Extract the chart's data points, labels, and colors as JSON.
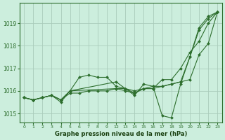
{
  "title": "Graphe pression niveau de la mer (hPa)",
  "bg_color": "#cceedd",
  "grid_color": "#aaccbb",
  "line_color": "#2d6e2d",
  "marker_color": "#2d6e2d",
  "ylim": [
    1014.6,
    1019.9
  ],
  "yticks": [
    1015,
    1016,
    1017,
    1018,
    1019
  ],
  "xlabel_color": "#1a4010",
  "series": [
    {
      "x": [
        0,
        1,
        2,
        3,
        4,
        5,
        6,
        7,
        8,
        9,
        12,
        13,
        14,
        15,
        16,
        17,
        18,
        19,
        20,
        21,
        22,
        23
      ],
      "y": [
        1015.7,
        1015.6,
        1015.7,
        1015.8,
        1015.5,
        1016.0,
        1016.6,
        1016.7,
        1016.6,
        1016.6,
        1016.2,
        1016.1,
        1015.8,
        1016.3,
        1016.2,
        1014.9,
        1014.8,
        1016.3,
        1017.5,
        1018.7,
        1019.2,
        1019.5
      ]
    },
    {
      "x": [
        0,
        1,
        2,
        3,
        4,
        5,
        6,
        7,
        8,
        9,
        12,
        13,
        14,
        15,
        16,
        17,
        18,
        19,
        20,
        21,
        22,
        23
      ],
      "y": [
        1015.7,
        1015.6,
        1015.7,
        1015.8,
        1015.6,
        1015.9,
        1015.9,
        1016.0,
        1016.0,
        1016.0,
        1016.1,
        1016.0,
        1015.9,
        1016.1,
        1016.2,
        1016.2,
        1016.3,
        1016.4,
        1016.5,
        1017.6,
        1018.1,
        1019.5
      ]
    },
    {
      "x": [
        0,
        1,
        2,
        3,
        4,
        5,
        12,
        13,
        14,
        15,
        16,
        17,
        18,
        19,
        20,
        21,
        22,
        23
      ],
      "y": [
        1015.7,
        1015.6,
        1015.7,
        1015.8,
        1015.6,
        1016.0,
        1016.4,
        1016.1,
        1015.9,
        1016.1,
        1016.1,
        1016.2,
        1016.3,
        1016.4,
        1017.5,
        1018.8,
        1019.3,
        1019.5
      ]
    },
    {
      "x": [
        0,
        1,
        2,
        3,
        4,
        5,
        12,
        13,
        14,
        15,
        16,
        17,
        18,
        19,
        20,
        21,
        22,
        23
      ],
      "y": [
        1015.7,
        1015.6,
        1015.7,
        1015.8,
        1015.6,
        1016.0,
        1016.1,
        1016.1,
        1016.0,
        1016.1,
        1016.1,
        1016.5,
        1016.5,
        1017.0,
        1017.7,
        1018.2,
        1019.0,
        1019.5
      ]
    }
  ],
  "all_xticks": [
    0,
    1,
    2,
    3,
    4,
    5,
    6,
    7,
    8,
    9,
    12,
    13,
    14,
    15,
    16,
    17,
    18,
    19,
    20,
    21,
    22,
    23
  ],
  "xtick_labels": [
    "0",
    "1",
    "2",
    "3",
    "4",
    "5",
    "6",
    "7",
    "8",
    "9",
    "12",
    "13",
    "14",
    "15",
    "16",
    "17",
    "18",
    "19",
    "20",
    "21",
    "22",
    "23"
  ],
  "figsize": [
    3.2,
    2.0
  ],
  "dpi": 100
}
